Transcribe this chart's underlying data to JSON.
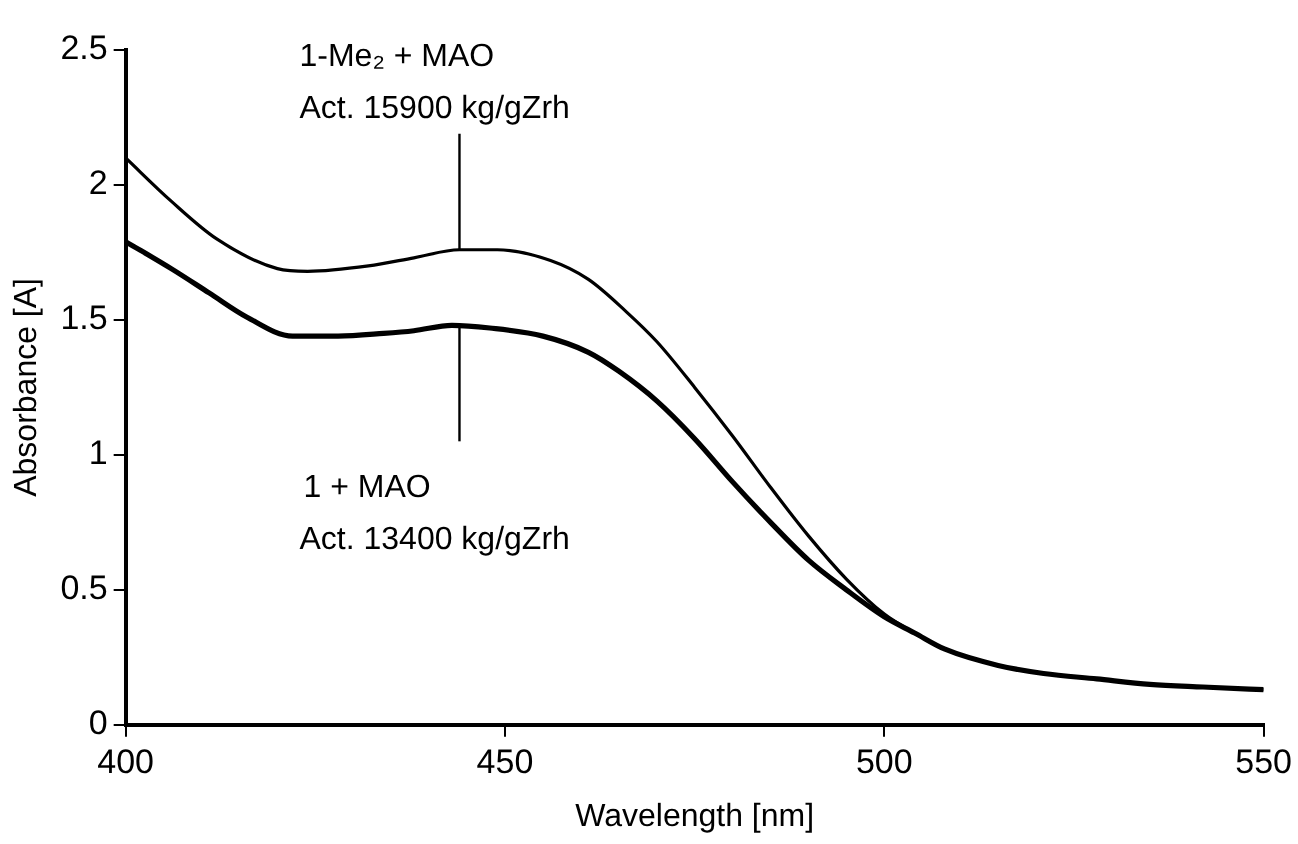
{
  "chart_data": {
    "type": "line",
    "xlabel": "Wavelength [nm]",
    "ylabel": "Absorbance [A]",
    "xlim": [
      400,
      550
    ],
    "xticks": [
      400,
      450,
      500,
      550
    ],
    "ylim": [
      0,
      2.5
    ],
    "yticks": [
      0,
      0.5,
      1,
      1.5,
      2,
      2.5
    ],
    "grid": false,
    "legend": false,
    "marker": "none",
    "line_style": "solid",
    "series": [
      {
        "color": "#000000",
        "x": [
          400,
          406,
          412,
          420,
          424,
          432,
          438,
          444,
          449,
          456,
          461,
          466,
          470,
          475,
          480,
          485,
          490,
          495,
          500,
          504,
          508,
          515,
          521,
          528,
          535,
          542,
          550
        ],
        "values": [
          2.1,
          1.94,
          1.8,
          1.69,
          1.68,
          1.7,
          1.73,
          1.76,
          1.76,
          1.72,
          1.65,
          1.53,
          1.42,
          1.25,
          1.07,
          0.88,
          0.7,
          0.54,
          0.41,
          0.34,
          0.28,
          0.22,
          0.19,
          0.17,
          0.15,
          0.14,
          0.13
        ]
      },
      {
        "color": "#000000",
        "x": [
          400,
          406,
          411,
          416,
          422,
          428,
          434,
          438,
          443,
          448,
          455,
          461,
          465,
          470,
          475,
          480,
          485,
          490,
          495,
          500,
          504,
          508,
          515,
          521,
          528,
          535,
          542,
          550
        ],
        "values": [
          1.79,
          1.69,
          1.6,
          1.51,
          1.44,
          1.44,
          1.45,
          1.46,
          1.48,
          1.47,
          1.44,
          1.38,
          1.31,
          1.2,
          1.06,
          0.9,
          0.75,
          0.61,
          0.5,
          0.4,
          0.34,
          0.28,
          0.22,
          0.19,
          0.17,
          0.15,
          0.14,
          0.13
        ]
      }
    ],
    "annotations": [
      {
        "text": "1-Me₂ + MAO\nAct. 15900 kg/gZrh",
        "x": 444,
        "y": 1.76
      },
      {
        "text": "1 + MAO\nAct. 13400 kg/gZrh",
        "x": 444,
        "y": 1.48
      }
    ]
  }
}
